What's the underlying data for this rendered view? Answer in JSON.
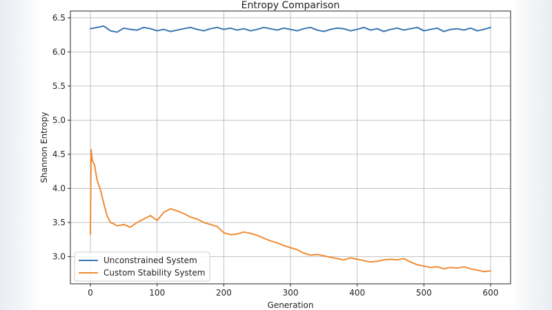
{
  "chart_data": {
    "type": "line",
    "title": "Entropy Comparison",
    "xlabel": "Generation",
    "ylabel": "Shannon Entropy",
    "xlim": [
      -30,
      630
    ],
    "ylim": [
      2.6,
      6.6
    ],
    "xticks": [
      0,
      100,
      200,
      300,
      400,
      500,
      600
    ],
    "xtick_labels": [
      "0",
      "100",
      "200",
      "300",
      "400",
      "500",
      "600"
    ],
    "yticks": [
      3.0,
      3.5,
      4.0,
      4.5,
      5.0,
      5.5,
      6.0,
      6.5
    ],
    "ytick_labels": [
      "3.0",
      "3.5",
      "4.0",
      "4.5",
      "5.0",
      "5.5",
      "6.0",
      "6.5"
    ],
    "grid": true,
    "legend_position": "bottom-left",
    "series": [
      {
        "name": "Unconstrained System",
        "color": "#3572b0",
        "x": [
          0,
          10,
          20,
          30,
          40,
          50,
          60,
          70,
          80,
          90,
          100,
          110,
          120,
          130,
          140,
          150,
          160,
          170,
          180,
          190,
          200,
          210,
          220,
          230,
          240,
          250,
          260,
          270,
          280,
          290,
          300,
          310,
          320,
          330,
          340,
          350,
          360,
          370,
          380,
          390,
          400,
          410,
          420,
          430,
          440,
          450,
          460,
          470,
          480,
          490,
          500,
          510,
          520,
          530,
          540,
          550,
          560,
          570,
          580,
          590,
          600
        ],
        "y": [
          6.34,
          6.36,
          6.38,
          6.31,
          6.29,
          6.35,
          6.33,
          6.32,
          6.36,
          6.34,
          6.31,
          6.33,
          6.3,
          6.32,
          6.34,
          6.36,
          6.33,
          6.31,
          6.34,
          6.36,
          6.33,
          6.35,
          6.32,
          6.34,
          6.31,
          6.33,
          6.36,
          6.34,
          6.32,
          6.35,
          6.33,
          6.31,
          6.34,
          6.36,
          6.32,
          6.3,
          6.33,
          6.35,
          6.34,
          6.31,
          6.33,
          6.36,
          6.32,
          6.34,
          6.3,
          6.33,
          6.35,
          6.32,
          6.34,
          6.36,
          6.31,
          6.33,
          6.35,
          6.3,
          6.33,
          6.34,
          6.32,
          6.35,
          6.31,
          6.33,
          6.36
        ]
      },
      {
        "name": "Custom Stability System",
        "color": "#ef8a32",
        "x": [
          0,
          1,
          3,
          6,
          10,
          15,
          20,
          25,
          30,
          35,
          40,
          50,
          60,
          70,
          80,
          90,
          100,
          110,
          120,
          130,
          140,
          150,
          160,
          170,
          180,
          190,
          200,
          210,
          220,
          230,
          240,
          250,
          260,
          270,
          280,
          290,
          300,
          310,
          320,
          330,
          340,
          350,
          360,
          370,
          380,
          390,
          400,
          410,
          420,
          430,
          440,
          450,
          460,
          470,
          480,
          490,
          500,
          510,
          520,
          530,
          540,
          550,
          560,
          570,
          580,
          590,
          600
        ],
        "y": [
          3.33,
          4.57,
          4.4,
          4.35,
          4.12,
          3.98,
          3.78,
          3.6,
          3.5,
          3.48,
          3.45,
          3.47,
          3.43,
          3.5,
          3.55,
          3.6,
          3.53,
          3.65,
          3.7,
          3.67,
          3.63,
          3.58,
          3.55,
          3.5,
          3.47,
          3.44,
          3.35,
          3.32,
          3.33,
          3.36,
          3.34,
          3.31,
          3.27,
          3.23,
          3.2,
          3.16,
          3.13,
          3.1,
          3.05,
          3.02,
          3.03,
          3.01,
          2.99,
          2.97,
          2.95,
          2.98,
          2.96,
          2.94,
          2.92,
          2.93,
          2.95,
          2.96,
          2.95,
          2.97,
          2.92,
          2.88,
          2.86,
          2.84,
          2.85,
          2.82,
          2.84,
          2.83,
          2.85,
          2.82,
          2.8,
          2.78,
          2.79
        ]
      }
    ]
  }
}
